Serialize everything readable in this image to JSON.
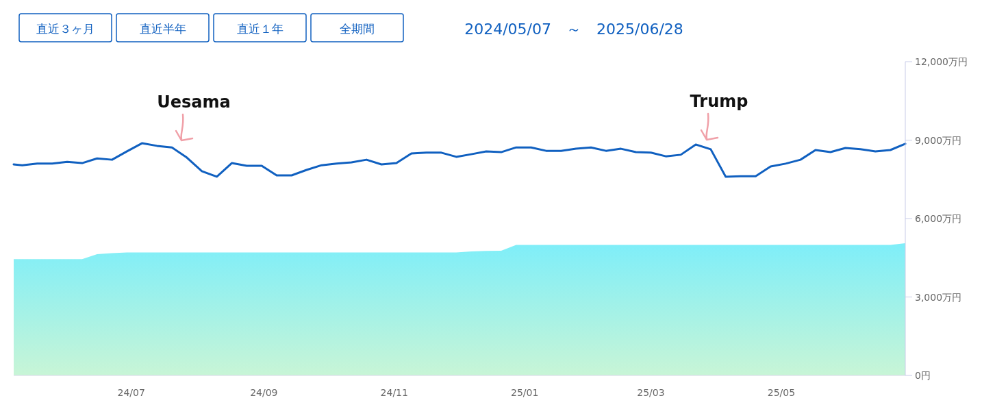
{
  "chart_data": {
    "type": "line",
    "title": "2024/05/07　～　2025/06/28",
    "annotations": [
      "直近３ヶ月",
      "直近半年",
      "直近１年",
      "全期間",
      "Uesama",
      "Trump"
    ],
    "series": [
      {
        "type": "area",
        "color": "#7eeef9",
        "x": [
          "2024-05-07",
          "2024-05-11",
          "2024-05-18",
          "2024-05-25",
          "2024-06-01",
          "2024-06-08",
          "2024-06-15",
          "2024-06-22",
          "2024-06-29",
          "2024-11-30",
          "2024-12-07",
          "2024-12-14",
          "2024-12-21",
          "2024-12-28",
          "2025-06-21",
          "2025-06-28"
        ],
        "values": [
          4450,
          4450,
          4450,
          4450,
          4450,
          4450,
          4640,
          4680,
          4700,
          4700,
          4740,
          4760,
          4770,
          4990,
          4990,
          5060
        ]
      },
      {
        "color": "#1060c0",
        "x": [
          "2024-05-07",
          "2024-05-11",
          "2024-05-18",
          "2024-05-25",
          "2024-06-01",
          "2024-06-08",
          "2024-06-15",
          "2024-06-22",
          "2024-06-29",
          "2024-07-06",
          "2024-07-13",
          "2024-07-20",
          "2024-07-27",
          "2024-08-03",
          "2024-08-10",
          "2024-08-17",
          "2024-08-24",
          "2024-08-31",
          "2024-09-07",
          "2024-09-14",
          "2024-09-21",
          "2024-09-28",
          "2024-10-05",
          "2024-10-12",
          "2024-10-19",
          "2024-10-26",
          "2024-11-02",
          "2024-11-09",
          "2024-11-16",
          "2024-11-23",
          "2024-11-30",
          "2024-12-07",
          "2024-12-14",
          "2024-12-21",
          "2024-12-28",
          "2025-01-04",
          "2025-01-11",
          "2025-01-18",
          "2025-01-25",
          "2025-02-01",
          "2025-02-08",
          "2025-02-15",
          "2025-02-22",
          "2025-03-01",
          "2025-03-08",
          "2025-03-15",
          "2025-03-22",
          "2025-03-29",
          "2025-04-05",
          "2025-04-12",
          "2025-04-19",
          "2025-04-26",
          "2025-05-03",
          "2025-05-10",
          "2025-05-17",
          "2025-05-24",
          "2025-05-31",
          "2025-06-07",
          "2025-06-14",
          "2025-06-21",
          "2025-06-28"
        ],
        "values": [
          8070,
          8040,
          8100,
          8100,
          8170,
          8120,
          8300,
          8250,
          8570,
          8880,
          8780,
          8720,
          8330,
          7810,
          7600,
          8120,
          8020,
          8020,
          7650,
          7650,
          7860,
          8040,
          8100,
          8150,
          8250,
          8070,
          8120,
          8490,
          8520,
          8520,
          8360,
          8460,
          8570,
          8540,
          8720,
          8720,
          8590,
          8590,
          8670,
          8720,
          8590,
          8670,
          8540,
          8520,
          8380,
          8440,
          8830,
          8650,
          7600,
          7620,
          7620,
          7990,
          8100,
          8250,
          8620,
          8540,
          8700,
          8650,
          8570,
          8620,
          8860
        ]
      }
    ],
    "xlim": [
      "2024-05-07",
      "2025-06-28"
    ],
    "xticks": [
      {
        "value": "2024-07-01",
        "label": "24/07"
      },
      {
        "value": "2024-09-01",
        "label": "24/09"
      },
      {
        "value": "2024-11-01",
        "label": "24/11"
      },
      {
        "value": "2025-01-01",
        "label": "25/01"
      },
      {
        "value": "2025-03-01",
        "label": "25/03"
      },
      {
        "value": "2025-05-01",
        "label": "25/05"
      }
    ],
    "ylim": [
      0,
      12000
    ],
    "yticks": [
      {
        "value": 0,
        "label": "0円"
      },
      {
        "value": 3000,
        "label": "3,000万円"
      },
      {
        "value": 6000,
        "label": "6,000万円"
      },
      {
        "value": 9000,
        "label": "9,000万円"
      },
      {
        "value": 12000,
        "label": "12,000万円"
      }
    ],
    "grid": false
  }
}
